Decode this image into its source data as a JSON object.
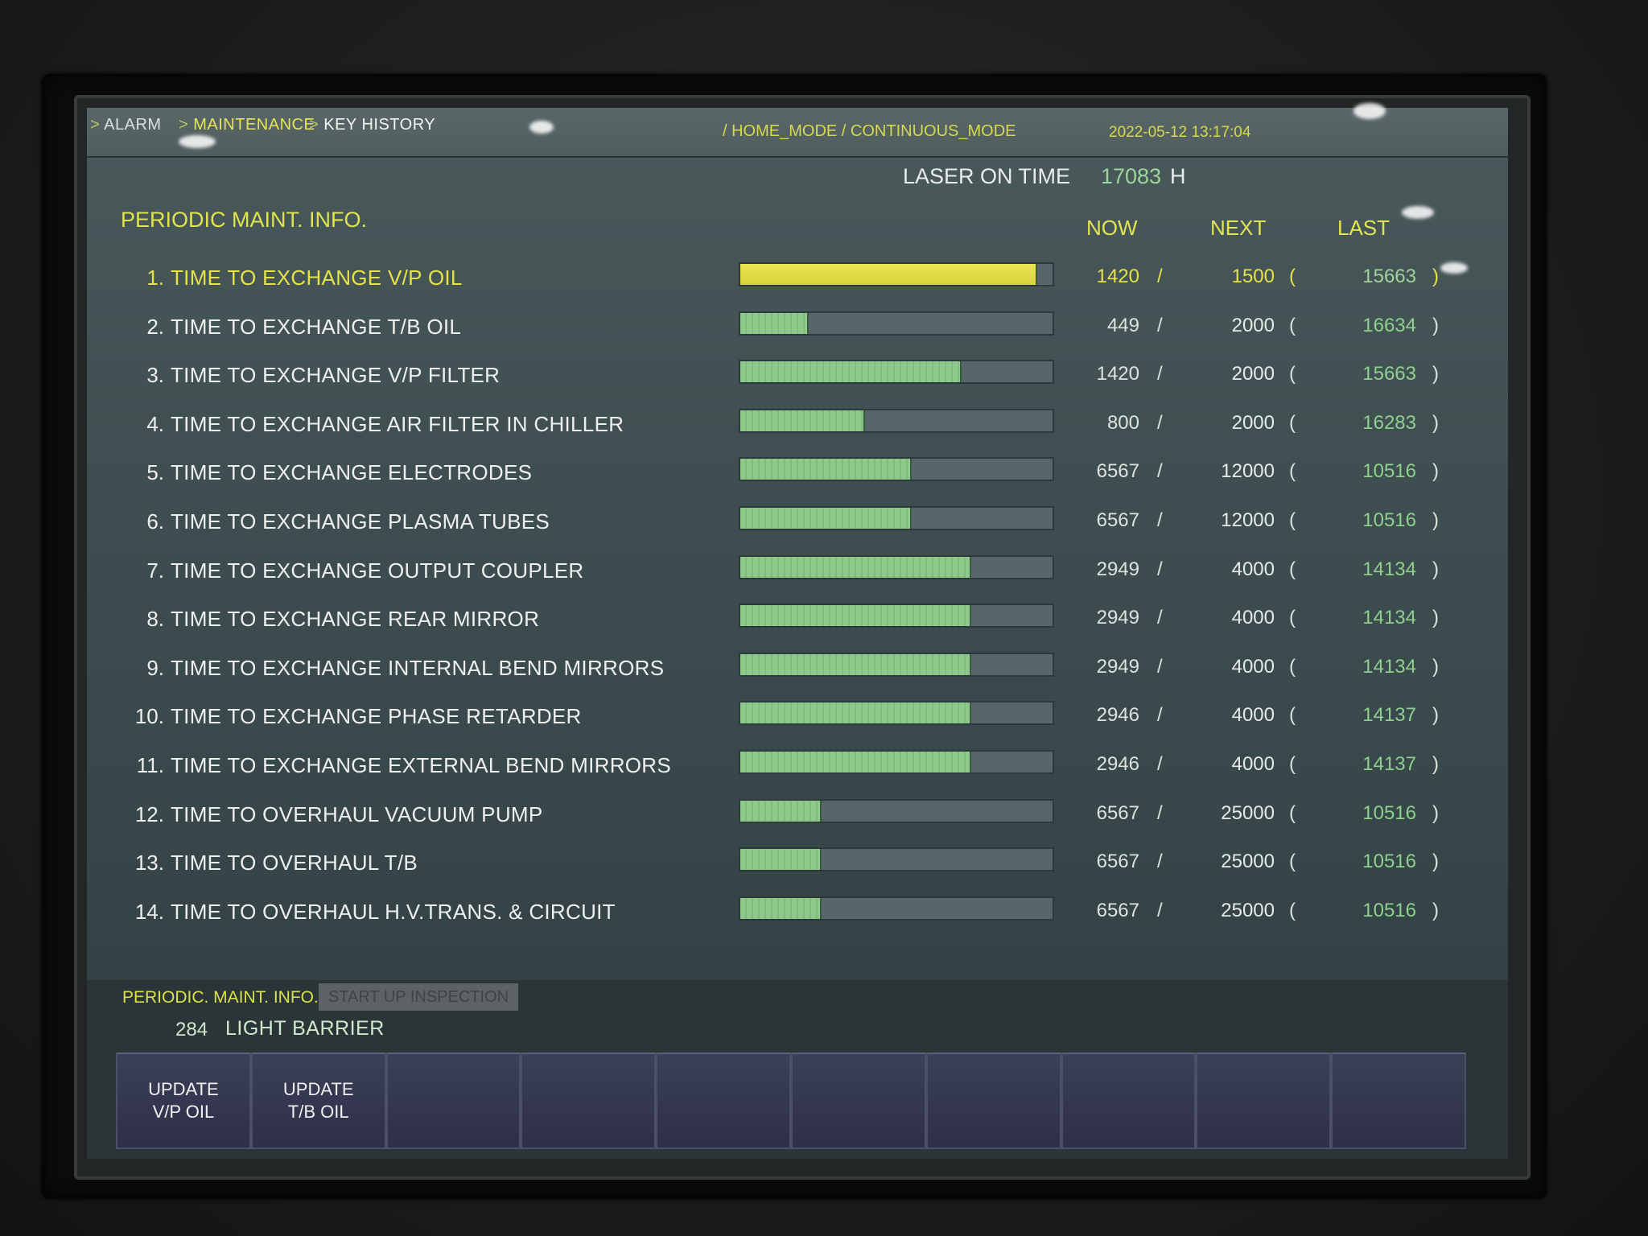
{
  "breadcrumb": {
    "items": [
      "ALARM",
      "MAINTENANCE",
      "KEY HISTORY"
    ],
    "sep": ">"
  },
  "mode": "/ HOME_MODE / CONTINUOUS_MODE",
  "datetime": "2022-05-12  13:17:04",
  "laser": {
    "label": "LASER ON TIME",
    "value": "17083",
    "unit": "H"
  },
  "section_title": "PERIODIC MAINT. INFO.",
  "columns": {
    "now": "NOW",
    "next": "NEXT",
    "last": "LAST"
  },
  "rows": [
    {
      "num": "1.",
      "label": "TIME TO EXCHANGE V/P OIL",
      "now": "1420",
      "next": "1500",
      "last": "15663",
      "progress": 0.95,
      "status": "warn"
    },
    {
      "num": "2.",
      "label": "TIME TO EXCHANGE T/B OIL",
      "now": "449",
      "next": "2000",
      "last": "16634",
      "progress": 0.22,
      "status": "ok"
    },
    {
      "num": "3.",
      "label": "TIME TO EXCHANGE V/P FILTER",
      "now": "1420",
      "next": "2000",
      "last": "15663",
      "progress": 0.71,
      "status": "ok"
    },
    {
      "num": "4.",
      "label": "TIME TO EXCHANGE AIR FILTER IN CHILLER",
      "now": "800",
      "next": "2000",
      "last": "16283",
      "progress": 0.4,
      "status": "ok"
    },
    {
      "num": "5.",
      "label": "TIME TO EXCHANGE ELECTRODES",
      "now": "6567",
      "next": "12000",
      "last": "10516",
      "progress": 0.55,
      "status": "ok"
    },
    {
      "num": "6.",
      "label": "TIME TO EXCHANGE PLASMA TUBES",
      "now": "6567",
      "next": "12000",
      "last": "10516",
      "progress": 0.55,
      "status": "ok"
    },
    {
      "num": "7.",
      "label": "TIME TO EXCHANGE OUTPUT COUPLER",
      "now": "2949",
      "next": "4000",
      "last": "14134",
      "progress": 0.74,
      "status": "ok"
    },
    {
      "num": "8.",
      "label": "TIME TO EXCHANGE REAR MIRROR",
      "now": "2949",
      "next": "4000",
      "last": "14134",
      "progress": 0.74,
      "status": "ok"
    },
    {
      "num": "9.",
      "label": "TIME TO EXCHANGE INTERNAL BEND MIRRORS",
      "now": "2949",
      "next": "4000",
      "last": "14134",
      "progress": 0.74,
      "status": "ok"
    },
    {
      "num": "10.",
      "label": "TIME TO EXCHANGE PHASE RETARDER",
      "now": "2946",
      "next": "4000",
      "last": "14137",
      "progress": 0.74,
      "status": "ok"
    },
    {
      "num": "11.",
      "label": "TIME TO EXCHANGE EXTERNAL BEND MIRRORS",
      "now": "2946",
      "next": "4000",
      "last": "14137",
      "progress": 0.74,
      "status": "ok"
    },
    {
      "num": "12.",
      "label": "TIME TO OVERHAUL VACUUM PUMP",
      "now": "6567",
      "next": "25000",
      "last": "10516",
      "progress": 0.26,
      "status": "ok"
    },
    {
      "num": "13.",
      "label": "TIME TO OVERHAUL T/B",
      "now": "6567",
      "next": "25000",
      "last": "10516",
      "progress": 0.26,
      "status": "ok"
    },
    {
      "num": "14.",
      "label": "TIME TO OVERHAUL H.V.TRANS. & CIRCUIT",
      "now": "6567",
      "next": "25000",
      "last": "10516",
      "progress": 0.26,
      "status": "ok"
    }
  ],
  "bottom_tabs": {
    "periodic": "PERIODIC. MAINT. INFO.",
    "startup": "START UP INSPECTION"
  },
  "alarm": {
    "code": "284",
    "text": "LIGHT BARRIER"
  },
  "function_keys": [
    "UPDATE\nV/P OIL",
    "UPDATE\nT/B OIL",
    "",
    "",
    "",
    "",
    "",
    "",
    "",
    ""
  ],
  "colors": {
    "accent_yellow": "#e5e24a",
    "bar_green": "#8cc98a",
    "last_value_green": "#8ed08e"
  }
}
